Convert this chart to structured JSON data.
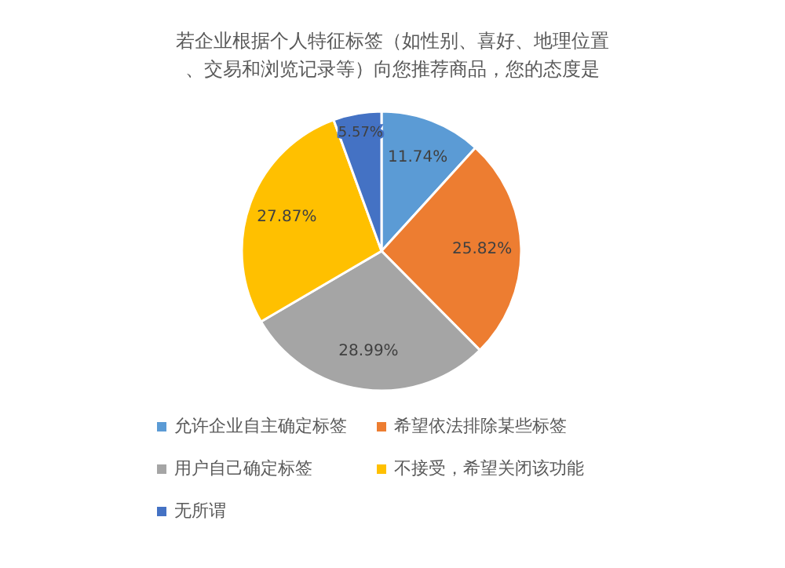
{
  "chart_data": {
    "type": "pie",
    "title": "若企业根据个人特征标签（如性别、喜好、地理位置、交易和浏览记录等）向您推荐商品，您的态度是",
    "categories": [
      "允许企业自主确定标签",
      "希望依法排除某些标签",
      "用户自己确定标签",
      "不接受，希望关闭该功能",
      "无所谓"
    ],
    "values": [
      11.74,
      25.82,
      28.99,
      27.87,
      5.57
    ],
    "value_labels": [
      "11.74%",
      "25.82%",
      "28.99%",
      "27.87%",
      "5.57%"
    ],
    "colors": [
      "#5b9bd5",
      "#ed7d31",
      "#a5a5a5",
      "#ffc000",
      "#4472c4"
    ],
    "legend": "bottom"
  }
}
